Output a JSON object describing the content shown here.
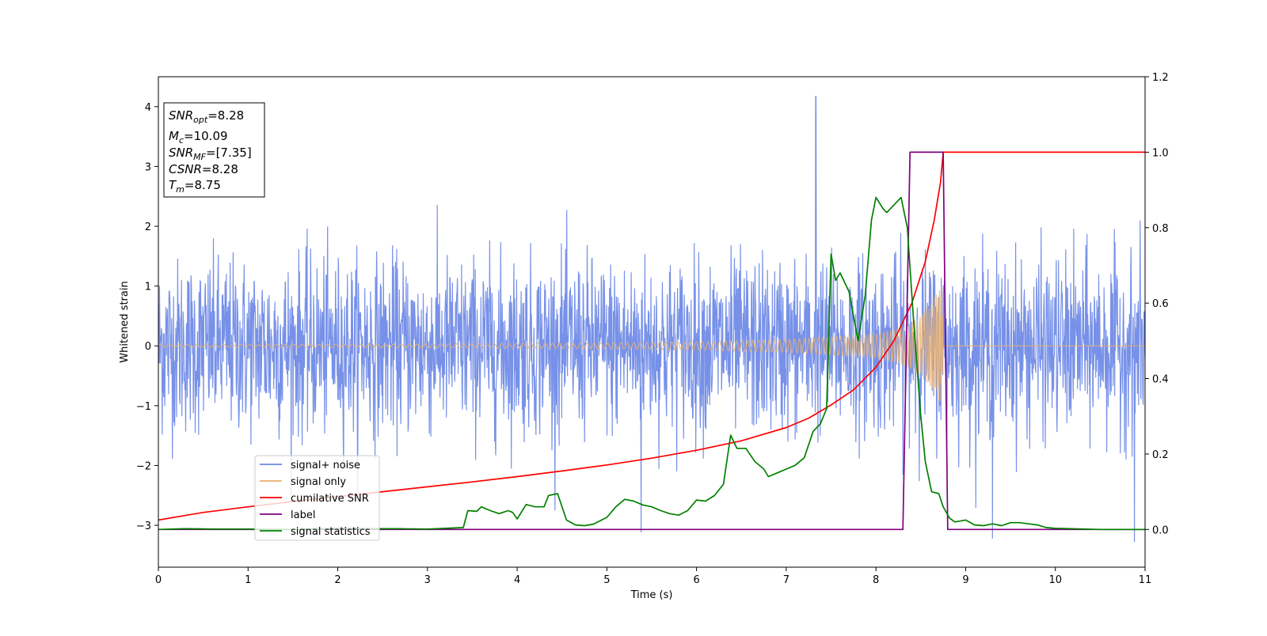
{
  "chart_data": {
    "type": "line",
    "xlabel": "Time (s)",
    "ylabel": "Whitened strain",
    "xlim": [
      0,
      11
    ],
    "ylim_left": [
      -3.7,
      4.5
    ],
    "ylim_right": [
      -0.1,
      1.2
    ],
    "x_ticks": [
      0,
      1,
      2,
      3,
      4,
      5,
      6,
      7,
      8,
      9,
      10,
      11
    ],
    "y_ticks_left": [
      -3,
      -2,
      -1,
      0,
      1,
      2,
      3,
      4
    ],
    "y_ticks_right": [
      0.0,
      0.2,
      0.4,
      0.6,
      0.8,
      1.0,
      1.2
    ],
    "y_tick_labels_right": [
      "0.0",
      "0.2",
      "0.4",
      "0.6",
      "0.8",
      "1.0",
      "1.2"
    ],
    "grid": false,
    "legend_position": "lower-left",
    "annotation": [
      {
        "base": "SNR",
        "sub": "opt",
        "value": "=8.28"
      },
      {
        "base": "M",
        "sub": "c",
        "value": "=10.09"
      },
      {
        "base": "SNR",
        "sub": "MF",
        "value": "=[7.35]"
      },
      {
        "base": "CSNR",
        "sub": "",
        "value": "=8.28"
      },
      {
        "base": "T",
        "sub": "m",
        "value": "=8.75"
      }
    ],
    "series": [
      {
        "name": "signal+ noise",
        "axis": "left",
        "color": "#6b88e6",
        "kind": "noise",
        "amplitude_std": 0.72,
        "peaks": [
          {
            "x": 7.33,
            "y": 4.17
          },
          {
            "x": 10.88,
            "y": -3.28
          },
          {
            "x": 9.3,
            "y": -3.22
          },
          {
            "x": 5.38,
            "y": -3.12
          }
        ]
      },
      {
        "name": "signal only",
        "axis": "left",
        "color": "#e8b070",
        "kind": "chirp",
        "envelope": [
          [
            0,
            0.02
          ],
          [
            2,
            0.025
          ],
          [
            4,
            0.04
          ],
          [
            5,
            0.05
          ],
          [
            6,
            0.07
          ],
          [
            7,
            0.11
          ],
          [
            7.5,
            0.15
          ],
          [
            8.0,
            0.2
          ],
          [
            8.3,
            0.32
          ],
          [
            8.5,
            0.5
          ],
          [
            8.65,
            0.8
          ],
          [
            8.74,
            1.0
          ],
          [
            8.75,
            0
          ],
          [
            11,
            0
          ]
        ]
      },
      {
        "name": "cumilative SNR",
        "axis": "right",
        "color": "#ff0000",
        "x": [
          0,
          0.5,
          1,
          1.5,
          2,
          2.5,
          3,
          3.5,
          4,
          4.5,
          5,
          5.5,
          6,
          6.5,
          7,
          7.25,
          7.5,
          7.75,
          8.0,
          8.2,
          8.4,
          8.55,
          8.65,
          8.72,
          8.75,
          11
        ],
        "y": [
          0.025,
          0.045,
          0.06,
          0.074,
          0.087,
          0.1,
          0.113,
          0.126,
          0.14,
          0.155,
          0.171,
          0.189,
          0.21,
          0.235,
          0.27,
          0.295,
          0.33,
          0.37,
          0.43,
          0.5,
          0.6,
          0.71,
          0.82,
          0.92,
          1.0,
          1.0
        ]
      },
      {
        "name": "label",
        "axis": "right",
        "color": "#800080",
        "x": [
          0,
          8.3,
          8.38,
          8.75,
          8.8,
          11
        ],
        "y": [
          0,
          0,
          1,
          1,
          0,
          0
        ]
      },
      {
        "name": "signal statistics",
        "axis": "right",
        "color": "#008000",
        "x": [
          0,
          0.3,
          0.6,
          1,
          1.5,
          2,
          2.5,
          2.7,
          3,
          3.2,
          3.4,
          3.45,
          3.55,
          3.6,
          3.7,
          3.8,
          3.9,
          3.95,
          4.0,
          4.1,
          4.2,
          4.3,
          4.35,
          4.45,
          4.55,
          4.65,
          4.75,
          4.85,
          5.0,
          5.1,
          5.2,
          5.3,
          5.4,
          5.5,
          5.6,
          5.7,
          5.8,
          5.9,
          6.0,
          6.1,
          6.2,
          6.3,
          6.38,
          6.45,
          6.55,
          6.65,
          6.75,
          6.8,
          6.9,
          7.0,
          7.1,
          7.2,
          7.3,
          7.38,
          7.45,
          7.5,
          7.55,
          7.6,
          7.7,
          7.8,
          7.88,
          7.95,
          8.0,
          8.08,
          8.12,
          8.2,
          8.28,
          8.35,
          8.42,
          8.5,
          8.55,
          8.62,
          8.7,
          8.75,
          8.82,
          8.88,
          9.0,
          9.1,
          9.2,
          9.3,
          9.4,
          9.5,
          9.6,
          9.7,
          9.8,
          9.9,
          10.0,
          10.5,
          11.0
        ],
        "y": [
          0,
          0.002,
          0.001,
          0.001,
          0.0,
          0.003,
          0.002,
          0.002,
          0.001,
          0.003,
          0.005,
          0.05,
          0.048,
          0.06,
          0.05,
          0.042,
          0.05,
          0.045,
          0.028,
          0.066,
          0.06,
          0.06,
          0.09,
          0.095,
          0.025,
          0.012,
          0.01,
          0.014,
          0.032,
          0.06,
          0.08,
          0.075,
          0.065,
          0.06,
          0.05,
          0.042,
          0.038,
          0.05,
          0.078,
          0.075,
          0.09,
          0.12,
          0.25,
          0.215,
          0.215,
          0.18,
          0.16,
          0.14,
          0.15,
          0.16,
          0.17,
          0.19,
          0.26,
          0.28,
          0.32,
          0.73,
          0.66,
          0.68,
          0.63,
          0.5,
          0.62,
          0.82,
          0.88,
          0.85,
          0.84,
          0.86,
          0.88,
          0.8,
          0.55,
          0.3,
          0.18,
          0.1,
          0.095,
          0.06,
          0.03,
          0.02,
          0.025,
          0.012,
          0.01,
          0.015,
          0.01,
          0.018,
          0.018,
          0.015,
          0.012,
          0.005,
          0.003,
          0.0,
          0.0
        ]
      }
    ]
  }
}
